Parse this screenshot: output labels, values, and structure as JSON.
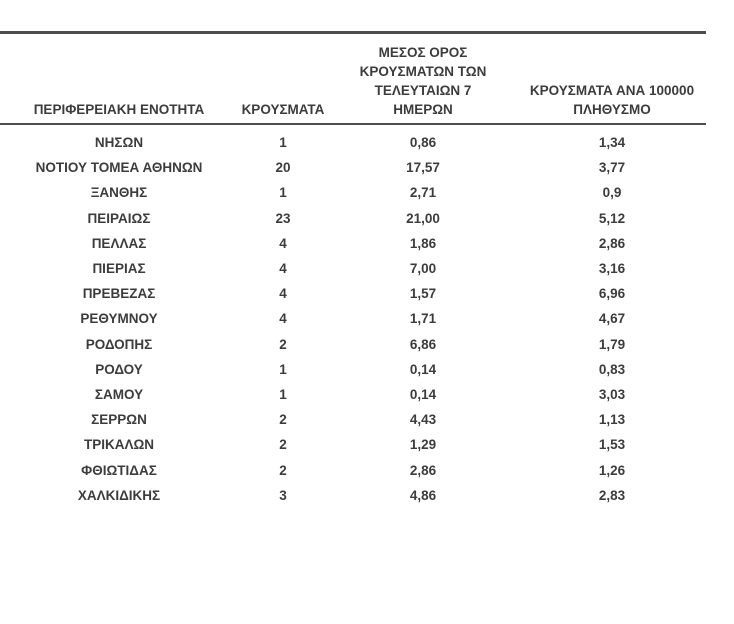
{
  "colors": {
    "text": "#3c3c3c",
    "rule": "#4d4d4d",
    "background": "#ffffff"
  },
  "table": {
    "columns": [
      {
        "label": "ΠΕΡΙΦΕΡΕΙΑΚΗ ΕΝΟΤΗΤΑ"
      },
      {
        "label": "ΚΡΟΥΣΜΑΤΑ"
      },
      {
        "label": "ΜΕΣΟΣ ΟΡΟΣ ΚΡΟΥΣΜΑΤΩΝ ΤΩΝ ΤΕΛΕΥΤΑΙΩΝ 7 ΗΜΕΡΩΝ"
      },
      {
        "label": "ΚΡΟΥΣΜΑΤΑ ΑΝΑ 100000 ΠΛΗΘΥΣΜΟ"
      }
    ],
    "rows": [
      [
        "ΝΗΣΩΝ",
        "1",
        "0,86",
        "1,34"
      ],
      [
        "ΝΟΤΙΟΥ ΤΟΜΕΑ ΑΘΗΝΩΝ",
        "20",
        "17,57",
        "3,77"
      ],
      [
        "ΞΑΝΘΗΣ",
        "1",
        "2,71",
        "0,9"
      ],
      [
        "ΠΕΙΡΑΙΩΣ",
        "23",
        "21,00",
        "5,12"
      ],
      [
        "ΠΕΛΛΑΣ",
        "4",
        "1,86",
        "2,86"
      ],
      [
        "ΠΙΕΡΙΑΣ",
        "4",
        "7,00",
        "3,16"
      ],
      [
        "ΠΡΕΒΕΖΑΣ",
        "4",
        "1,57",
        "6,96"
      ],
      [
        "ΡΕΘΥΜΝΟΥ",
        "4",
        "1,71",
        "4,67"
      ],
      [
        "ΡΟΔΟΠΗΣ",
        "2",
        "6,86",
        "1,79"
      ],
      [
        "ΡΟΔΟΥ",
        "1",
        "0,14",
        "0,83"
      ],
      [
        "ΣΑΜΟΥ",
        "1",
        "0,14",
        "3,03"
      ],
      [
        "ΣΕΡΡΩΝ",
        "2",
        "4,43",
        "1,13"
      ],
      [
        "ΤΡΙΚΑΛΩΝ",
        "2",
        "1,29",
        "1,53"
      ],
      [
        "ΦΘΙΩΤΙΔΑΣ",
        "2",
        "2,86",
        "1,26"
      ],
      [
        "ΧΑΛΚΙΔΙΚΗΣ",
        "3",
        "4,86",
        "2,83"
      ]
    ]
  }
}
